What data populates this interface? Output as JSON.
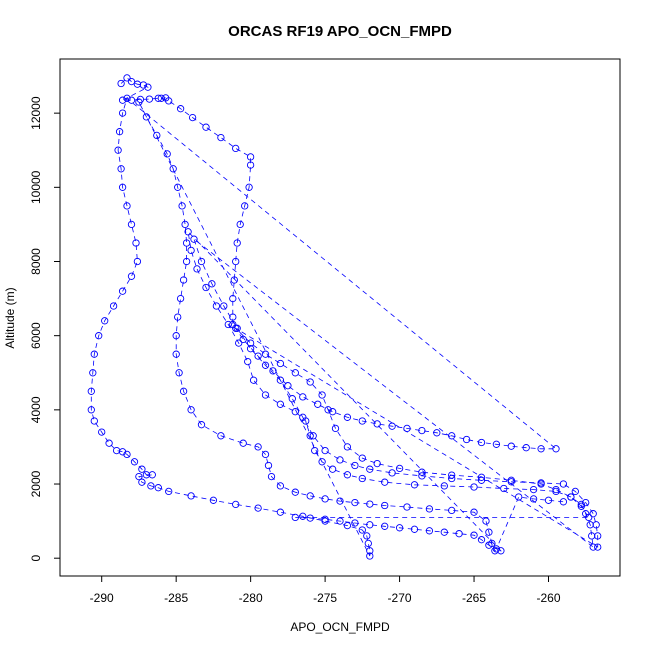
{
  "chart_data": {
    "type": "scatter",
    "title": "ORCAS RF19 APO_OCN_FMPD",
    "xlabel": "APO_OCN_FMPD",
    "ylabel": "Altitude (m)",
    "xlim": [
      -292.8,
      -255.2
    ],
    "ylim": [
      -480,
      13460
    ],
    "xticks": [
      -290,
      -285,
      -280,
      -275,
      -270,
      -265,
      -260
    ],
    "yticks": [
      0,
      2000,
      4000,
      6000,
      8000,
      10000,
      12000
    ],
    "grid": false,
    "legend": "none",
    "marker": "open-circle",
    "series": [
      {
        "color": "#0000ff",
        "points": [
          [
            -288.7,
            12800
          ],
          [
            -288.3,
            12950
          ],
          [
            -288.0,
            12850
          ],
          [
            -287.6,
            12780
          ],
          [
            -287.2,
            12760
          ],
          [
            -286.9,
            12700
          ],
          [
            -288.6,
            12350
          ],
          [
            -288.0,
            12350
          ],
          [
            -287.4,
            12370
          ],
          [
            -286.8,
            12380
          ],
          [
            -286.2,
            12400
          ],
          [
            -285.7,
            12410
          ],
          [
            -286.0,
            12400
          ],
          [
            -285.5,
            12330
          ],
          [
            -284.7,
            12120
          ],
          [
            -283.9,
            11880
          ],
          [
            -283.0,
            11620
          ],
          [
            -282.0,
            11340
          ],
          [
            -281.0,
            11050
          ],
          [
            -280.0,
            10820
          ],
          [
            -280.0,
            10600
          ],
          [
            -280.1,
            10000
          ],
          [
            -280.4,
            9500
          ],
          [
            -280.7,
            9000
          ],
          [
            -280.9,
            8500
          ],
          [
            -281.0,
            8000
          ],
          [
            -281.1,
            7500
          ],
          [
            -281.2,
            7000
          ],
          [
            -281.2,
            6500
          ],
          [
            -281.2,
            6300
          ],
          [
            -280.5,
            5900
          ],
          [
            -279.5,
            5450
          ],
          [
            -278.5,
            5050
          ],
          [
            -277.5,
            4650
          ],
          [
            -276.5,
            4350
          ],
          [
            -275.5,
            4150
          ],
          [
            -274.5,
            3950
          ],
          [
            -273.5,
            3800
          ],
          [
            -272.5,
            3700
          ],
          [
            -271.5,
            3620
          ],
          [
            -270.5,
            3560
          ],
          [
            -269.5,
            3500
          ],
          [
            -268.5,
            3440
          ],
          [
            -267.5,
            3380
          ],
          [
            -266.5,
            3300
          ],
          [
            -265.5,
            3200
          ],
          [
            -264.5,
            3120
          ],
          [
            -263.5,
            3070
          ],
          [
            -262.5,
            3020
          ],
          [
            -261.5,
            2980
          ],
          [
            -260.5,
            2950
          ],
          [
            -259.5,
            2950
          ],
          [
            -288.3,
            12400
          ],
          [
            -288.6,
            12000
          ],
          [
            -288.8,
            11500
          ],
          [
            -288.9,
            11000
          ],
          [
            -288.7,
            10500
          ],
          [
            -288.6,
            10000
          ],
          [
            -288.3,
            9500
          ],
          [
            -288.0,
            9000
          ],
          [
            -287.7,
            8500
          ],
          [
            -287.6,
            8000
          ],
          [
            -288.0,
            7600
          ],
          [
            -288.6,
            7200
          ],
          [
            -289.2,
            6800
          ],
          [
            -289.8,
            6400
          ],
          [
            -290.2,
            6000
          ],
          [
            -290.5,
            5500
          ],
          [
            -290.6,
            5000
          ],
          [
            -290.7,
            4500
          ],
          [
            -290.7,
            4000
          ],
          [
            -290.5,
            3700
          ],
          [
            -290.0,
            3400
          ],
          [
            -289.5,
            3100
          ],
          [
            -289.0,
            2900
          ],
          [
            -288.6,
            2870
          ],
          [
            -288.3,
            2800
          ],
          [
            -287.8,
            2600
          ],
          [
            -287.3,
            2400
          ],
          [
            -287.0,
            2250
          ],
          [
            -286.6,
            2250
          ],
          [
            -287.5,
            2200
          ],
          [
            -287.3,
            2050
          ],
          [
            -286.7,
            1950
          ],
          [
            -286.2,
            1900
          ],
          [
            -285.5,
            1800
          ],
          [
            -284.0,
            1680
          ],
          [
            -282.5,
            1560
          ],
          [
            -281.0,
            1450
          ],
          [
            -279.5,
            1350
          ],
          [
            -278.0,
            1240
          ],
          [
            -276.5,
            1130
          ],
          [
            -275.0,
            1000
          ],
          [
            -273.5,
            880
          ],
          [
            -272.5,
            760
          ],
          [
            -272.2,
            600
          ],
          [
            -272.1,
            400
          ],
          [
            -272.0,
            200
          ],
          [
            -272.0,
            60
          ],
          [
            -287.5,
            12300
          ],
          [
            -287.0,
            11900
          ],
          [
            -286.3,
            11400
          ],
          [
            -285.6,
            10900
          ],
          [
            -285.2,
            10500
          ],
          [
            -284.9,
            10000
          ],
          [
            -284.6,
            9500
          ],
          [
            -284.4,
            9000
          ],
          [
            -284.3,
            8500
          ],
          [
            -284.3,
            8000
          ],
          [
            -284.5,
            7500
          ],
          [
            -284.7,
            7000
          ],
          [
            -284.9,
            6500
          ],
          [
            -285.0,
            6000
          ],
          [
            -285.0,
            5500
          ],
          [
            -284.8,
            5000
          ],
          [
            -284.5,
            4500
          ],
          [
            -284.0,
            4000
          ],
          [
            -283.3,
            3600
          ],
          [
            -282.0,
            3300
          ],
          [
            -280.5,
            3100
          ],
          [
            -279.5,
            3000
          ],
          [
            -279.0,
            2800
          ],
          [
            -278.8,
            2500
          ],
          [
            -278.6,
            2200
          ],
          [
            -278.0,
            1950
          ],
          [
            -277.0,
            1780
          ],
          [
            -276.0,
            1680
          ],
          [
            -275.0,
            1600
          ],
          [
            -274.0,
            1540
          ],
          [
            -273.0,
            1500
          ],
          [
            -272.0,
            1460
          ],
          [
            -271.0,
            1420
          ],
          [
            -269.5,
            1380
          ],
          [
            -268.0,
            1330
          ],
          [
            -266.5,
            1290
          ],
          [
            -265.0,
            1240
          ],
          [
            -264.2,
            1000
          ],
          [
            -264.0,
            700
          ],
          [
            -263.8,
            400
          ],
          [
            -263.6,
            200
          ],
          [
            -263.2,
            200
          ],
          [
            -284.2,
            8800
          ],
          [
            -284.0,
            8300
          ],
          [
            -283.6,
            7800
          ],
          [
            -283.0,
            7300
          ],
          [
            -282.3,
            6800
          ],
          [
            -281.5,
            6300
          ],
          [
            -280.8,
            5800
          ],
          [
            -280.2,
            5300
          ],
          [
            -279.8,
            4800
          ],
          [
            -279.0,
            4400
          ],
          [
            -278.0,
            4150
          ],
          [
            -277.0,
            3950
          ],
          [
            -276.3,
            3700
          ],
          [
            -276.0,
            3300
          ],
          [
            -275.7,
            2900
          ],
          [
            -275.2,
            2600
          ],
          [
            -274.5,
            2400
          ],
          [
            -273.5,
            2250
          ],
          [
            -272.5,
            2150
          ],
          [
            -271.0,
            2050
          ],
          [
            -269.0,
            1980
          ],
          [
            -267.0,
            1950
          ],
          [
            -265.0,
            1920
          ],
          [
            -263.0,
            1880
          ],
          [
            -261.0,
            1850
          ],
          [
            -259.5,
            1800
          ],
          [
            -258.5,
            1650
          ],
          [
            -257.8,
            1450
          ],
          [
            -257.5,
            1200
          ],
          [
            -257.2,
            900
          ],
          [
            -257.1,
            600
          ],
          [
            -257.0,
            300
          ],
          [
            -283.8,
            8600
          ],
          [
            -283.3,
            8000
          ],
          [
            -282.6,
            7400
          ],
          [
            -281.8,
            6800
          ],
          [
            -280.9,
            6200
          ],
          [
            -280.0,
            5650
          ],
          [
            -279.0,
            5200
          ],
          [
            -278.0,
            4800
          ],
          [
            -277.2,
            4300
          ],
          [
            -276.5,
            3800
          ],
          [
            -275.8,
            3300
          ],
          [
            -275.0,
            2900
          ],
          [
            -274.0,
            2650
          ],
          [
            -273.0,
            2500
          ],
          [
            -272.0,
            2400
          ],
          [
            -270.5,
            2300
          ],
          [
            -268.5,
            2220
          ],
          [
            -266.5,
            2150
          ],
          [
            -264.5,
            2100
          ],
          [
            -262.5,
            2060
          ],
          [
            -260.5,
            2030
          ],
          [
            -259.0,
            2000
          ],
          [
            -258.2,
            1800
          ],
          [
            -257.5,
            1500
          ],
          [
            -257.0,
            1200
          ],
          [
            -256.8,
            900
          ],
          [
            -256.7,
            600
          ],
          [
            -256.7,
            300
          ],
          [
            -281.0,
            6200
          ],
          [
            -280.0,
            5800
          ],
          [
            -279.0,
            5500
          ],
          [
            -278.0,
            5250
          ],
          [
            -277.0,
            5000
          ],
          [
            -276.0,
            4750
          ],
          [
            -275.2,
            4400
          ],
          [
            -274.8,
            4000
          ],
          [
            -274.3,
            3500
          ],
          [
            -273.5,
            3000
          ],
          [
            -272.5,
            2700
          ],
          [
            -271.5,
            2550
          ],
          [
            -270.0,
            2420
          ],
          [
            -268.5,
            2320
          ],
          [
            -266.5,
            2240
          ],
          [
            -264.5,
            2180
          ],
          [
            -262.5,
            2100
          ],
          [
            -260.5,
            2000
          ],
          [
            -259.5,
            1850
          ],
          [
            -258.5,
            1650
          ],
          [
            -257.8,
            1400
          ],
          [
            -257.3,
            1100
          ],
          [
            -277.0,
            1100
          ],
          [
            -276.0,
            1080
          ],
          [
            -275.0,
            1050
          ],
          [
            -274.0,
            1000
          ],
          [
            -273.0,
            950
          ],
          [
            -272.0,
            900
          ],
          [
            -271.0,
            860
          ],
          [
            -270.0,
            820
          ],
          [
            -269.0,
            780
          ],
          [
            -268.0,
            740
          ],
          [
            -267.0,
            700
          ],
          [
            -266.0,
            660
          ],
          [
            -265.0,
            620
          ],
          [
            -264.5,
            500
          ],
          [
            -264.0,
            350
          ],
          [
            -263.5,
            250
          ],
          [
            -262.0,
            1650
          ],
          [
            -261.0,
            1600
          ],
          [
            -260.0,
            1560
          ],
          [
            -259.0,
            1520
          ]
        ]
      }
    ]
  }
}
